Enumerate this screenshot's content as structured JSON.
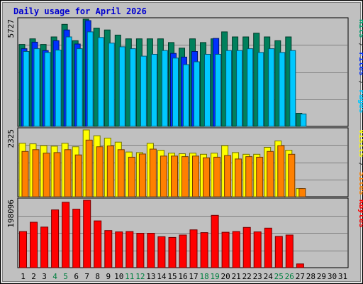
{
  "chart_data": {
    "type": "bar",
    "title": "Daily usage for April 2026",
    "categories": [
      "1",
      "2",
      "3",
      "4",
      "5",
      "6",
      "7",
      "8",
      "9",
      "10",
      "11",
      "12",
      "13",
      "14",
      "15",
      "16",
      "17",
      "18",
      "19",
      "20",
      "21",
      "22",
      "23",
      "24",
      "25",
      "26",
      "27",
      "28",
      "29",
      "30",
      "31"
    ],
    "weekend_days": [
      "4",
      "5",
      "11",
      "12",
      "18",
      "19",
      "25",
      "26"
    ],
    "panels": [
      {
        "id": "hits-files-pages",
        "ymax_label": "5727",
        "ymax": 5727,
        "right_labels": [
          {
            "text": "Pages",
            "color": "#00c8ff"
          },
          {
            "text": " / ",
            "color": "#303030"
          },
          {
            "text": "Files",
            "color": "#0030ff"
          },
          {
            "text": " / ",
            "color": "#303030"
          },
          {
            "text": "Hits",
            "color": "#00a070"
          }
        ],
        "series": [
          {
            "name": "Hits",
            "color": "#00805c",
            "values": [
              4378,
              4678,
              4378,
              4778,
              5450,
              4578,
              5727,
              5250,
              5150,
              4878,
              4678,
              4678,
              4678,
              4678,
              4478,
              4178,
              4678,
              4478,
              4678,
              5050,
              4778,
              4778,
              4978,
              4778,
              4578,
              4778,
              700,
              0,
              0,
              0,
              0
            ]
          },
          {
            "name": "Files",
            "color": "#0030ff",
            "values": [
              4150,
              4500,
              4050,
              4578,
              5150,
              4400,
              5650,
              0,
              0,
              0,
              0,
              0,
              0,
              0,
              3900,
              3700,
              4000,
              0,
              4700,
              0,
              0,
              0,
              0,
              0,
              0,
              0,
              0,
              0,
              0,
              0,
              0
            ]
          },
          {
            "name": "Pages",
            "color": "#00c8ff",
            "values": [
              4000,
              4150,
              3950,
              4078,
              4778,
              4150,
              5050,
              4750,
              4450,
              4250,
              4150,
              3750,
              3850,
              4050,
              3650,
              3300,
              3450,
              3850,
              3850,
              4050,
              4050,
              4150,
              3950,
              4150,
              3950,
              4050,
              660,
              0,
              0,
              0,
              0
            ]
          }
        ]
      },
      {
        "id": "visits-sites",
        "ymax_label": "2325",
        "ymax": 2325,
        "right_labels": [
          {
            "text": "Sites",
            "color": "#ff8000"
          },
          {
            "text": " / ",
            "color": "#303030"
          },
          {
            "text": "Visits",
            "color": "#ffff00"
          }
        ],
        "series": [
          {
            "name": "Visits",
            "color": "#ffff00",
            "values": [
              1840,
              1820,
              1760,
              1740,
              1840,
              1720,
              2300,
              2100,
              2020,
              1880,
              1540,
              1520,
              1840,
              1600,
              1500,
              1480,
              1500,
              1460,
              1500,
              1760,
              1520,
              1460,
              1460,
              1700,
              1920,
              1600,
              280,
              0,
              0,
              0,
              0
            ]
          },
          {
            "name": "Sites",
            "color": "#ff8000",
            "values": [
              1560,
              1620,
              1500,
              1520,
              1620,
              1440,
              1950,
              1720,
              1750,
              1620,
              1360,
              1470,
              1640,
              1400,
              1400,
              1380,
              1400,
              1340,
              1360,
              1420,
              1300,
              1380,
              1360,
              1560,
              1760,
              1460,
              280,
              0,
              0,
              0,
              0
            ]
          }
        ]
      },
      {
        "id": "kbytes",
        "ymax_label": "198096",
        "ymax": 198096,
        "right_labels": [
          {
            "text": "KBytes",
            "color": "#ff0000"
          }
        ],
        "series": [
          {
            "name": "KBytes",
            "color": "#ff0000",
            "values": [
              105000,
              132000,
              118000,
              168000,
              190000,
              170000,
              196000,
              136000,
              108000,
              104000,
              105000,
              100000,
              100000,
              90000,
              88000,
              95000,
              110000,
              102000,
              152000,
              103000,
              105000,
              117000,
              104000,
              115000,
              91000,
              95000,
              11000,
              0,
              0,
              0,
              0
            ]
          }
        ]
      }
    ]
  }
}
